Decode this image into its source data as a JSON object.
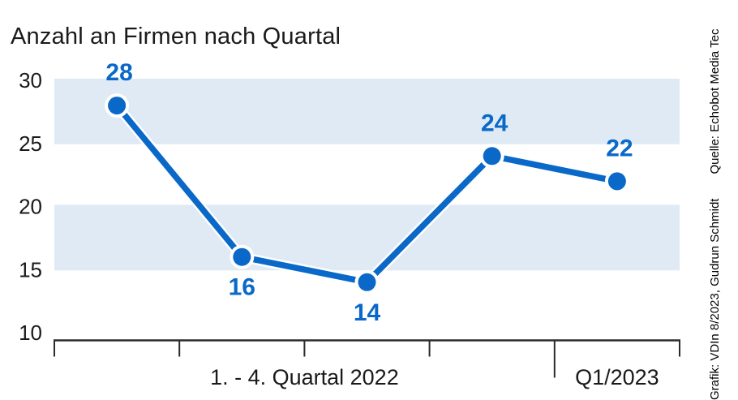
{
  "title": "Anzahl an Firmen nach Quartal",
  "credits": {
    "grafik": "Grafik: VDIn 8/2023, Gudrun Schmidt",
    "quelle": "Quelle: Echobot Media Tec"
  },
  "chart_data": {
    "type": "line",
    "series": [
      {
        "name": "Anzahl an Firmen",
        "values": [
          28,
          16,
          14,
          24,
          22
        ]
      }
    ],
    "point_labels": [
      "28",
      "16",
      "14",
      "24",
      "22"
    ],
    "label_side": [
      "above",
      "below",
      "below",
      "above",
      "above"
    ],
    "x_group_labels": [
      {
        "label": "1. - 4. Quartal 2022",
        "span": [
          0,
          4
        ]
      },
      {
        "label": "Q1/2023",
        "span": [
          4,
          5
        ]
      }
    ],
    "yticks": [
      10,
      15,
      20,
      25,
      30
    ],
    "ylim": [
      10,
      30
    ],
    "shaded_bands": [
      [
        15,
        20
      ],
      [
        25,
        30
      ]
    ],
    "grid": false,
    "legend": false,
    "xlabel": "",
    "ylabel": "",
    "colors": {
      "line": "#0a69c8",
      "marker": "#0a69c8",
      "marker_ring": "#ffffff",
      "band": "#dfeaf5",
      "text": "#1a1a1a",
      "axis": "#2a2a2a",
      "value_label": "#0a69c8"
    }
  }
}
